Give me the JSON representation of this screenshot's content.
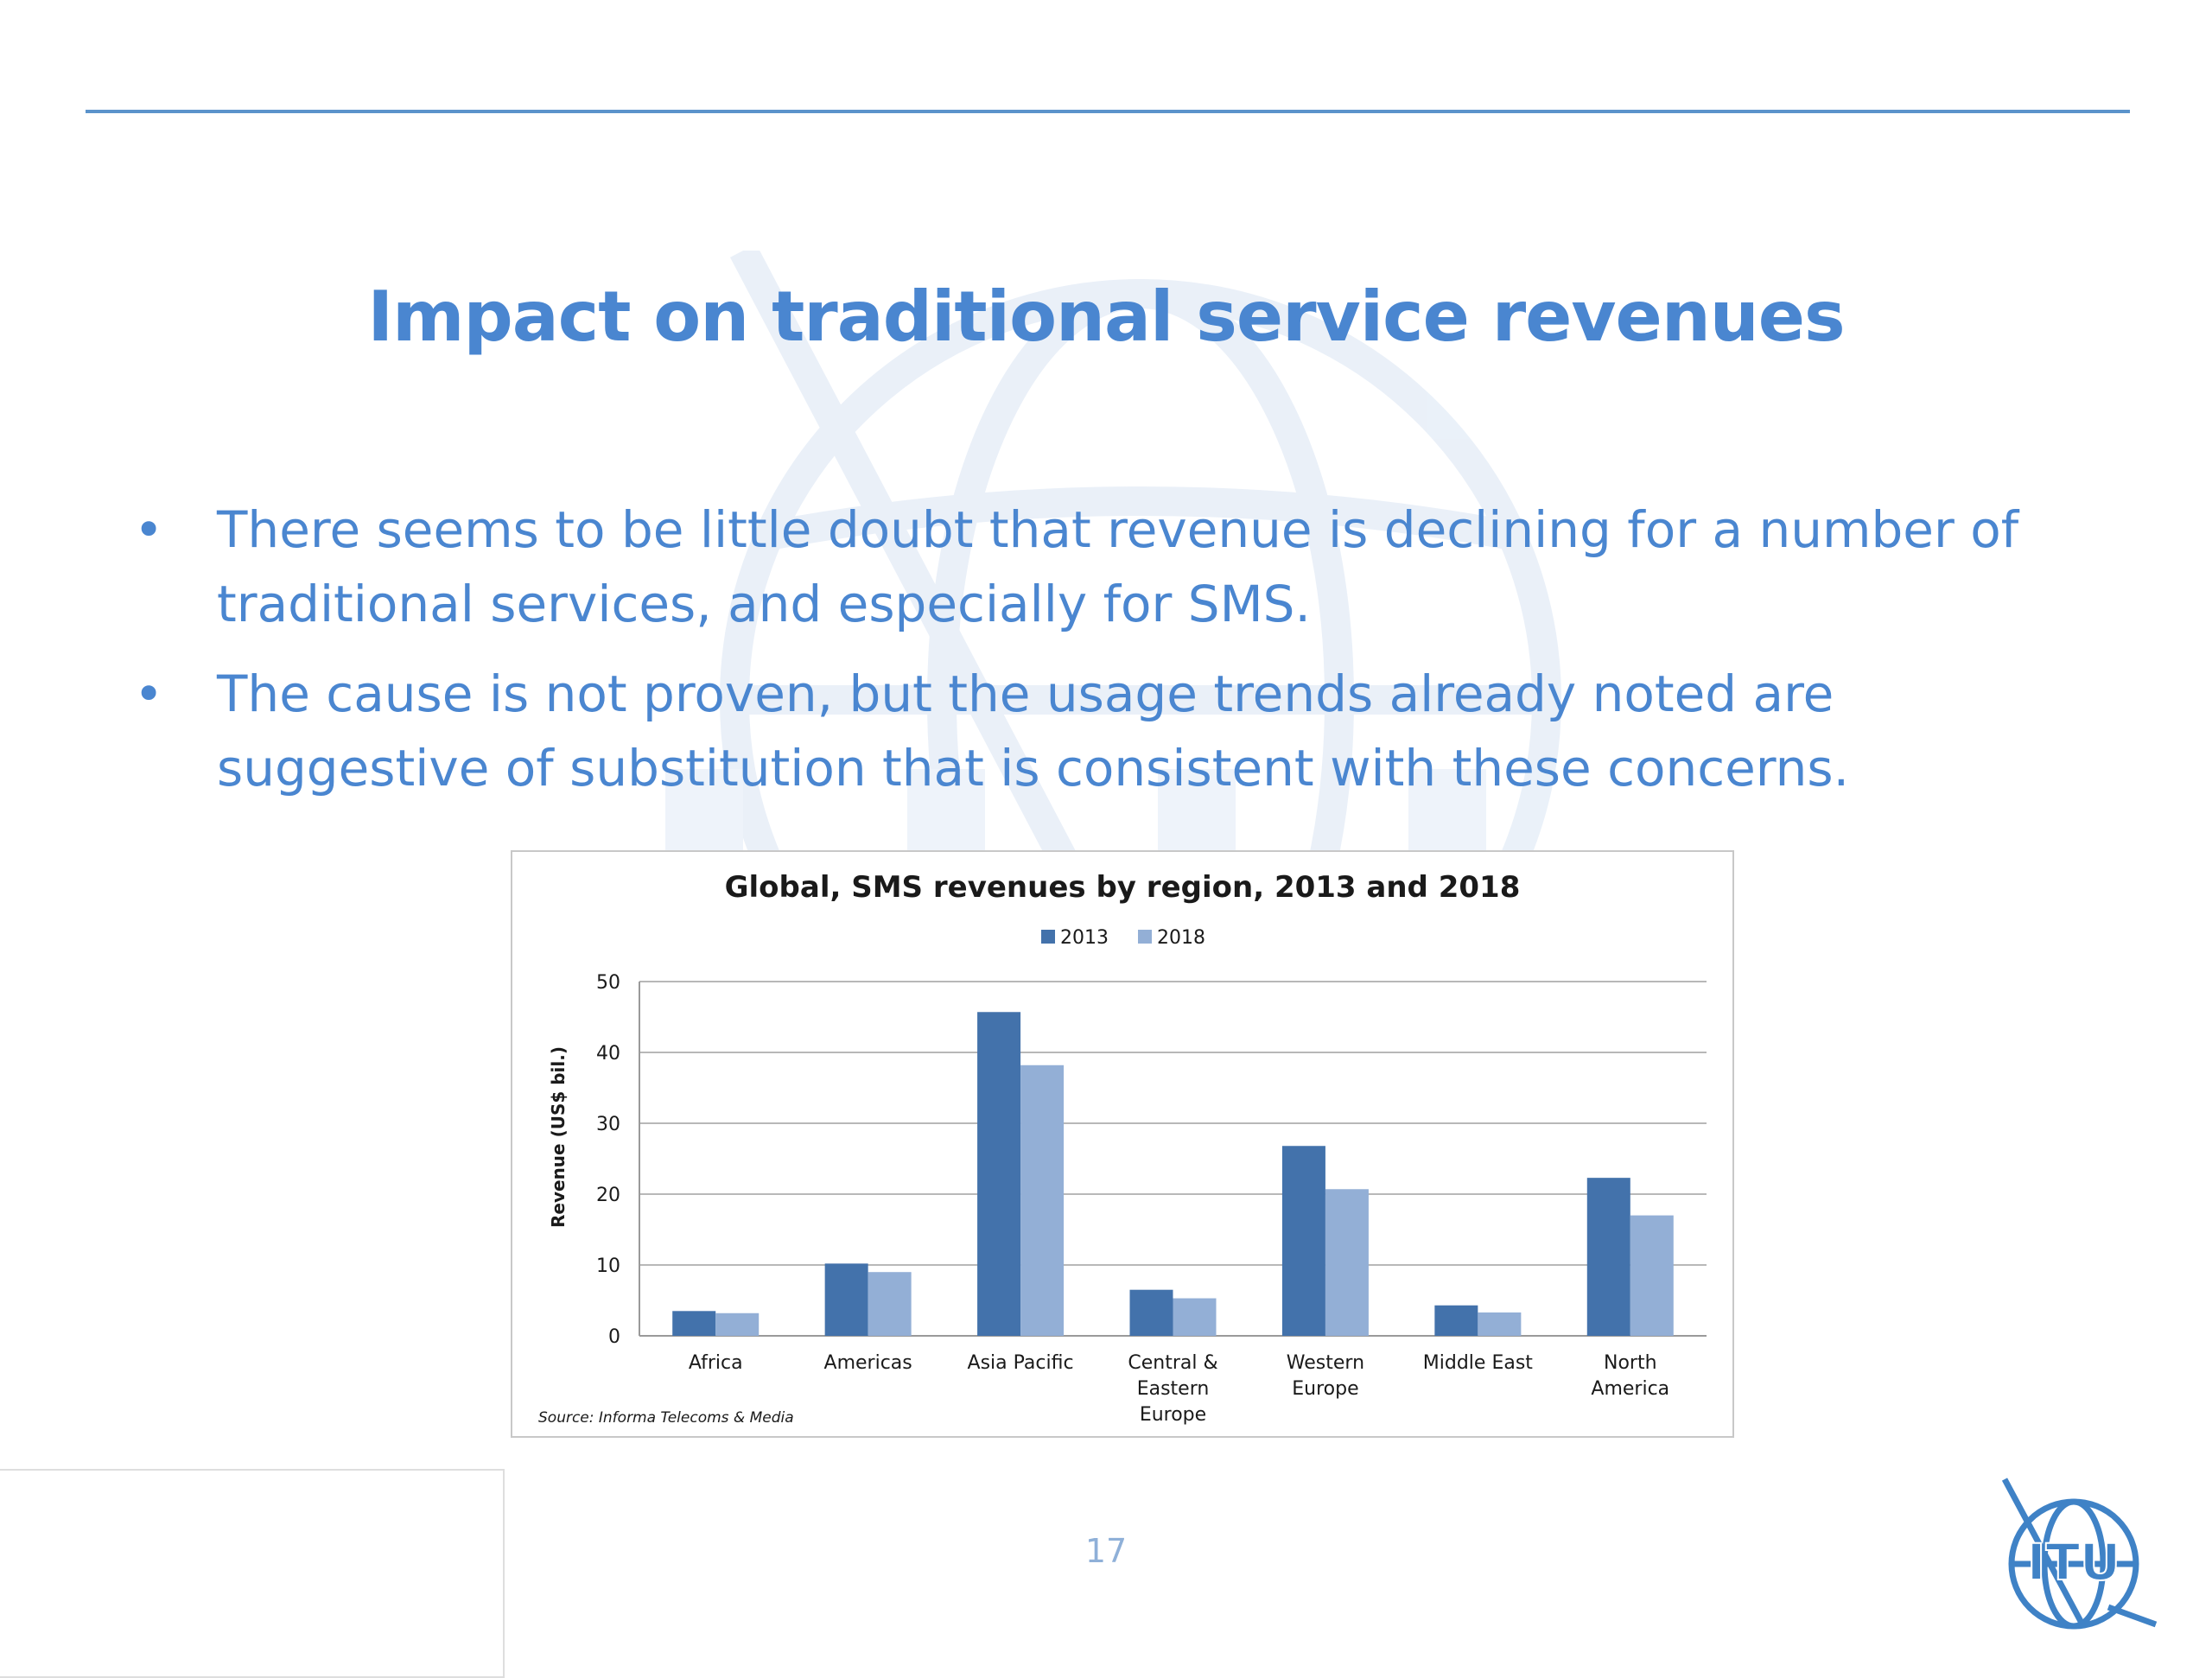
{
  "slide": {
    "title": "Impact on traditional service revenues",
    "bullets": [
      "There seems to be little doubt that revenue is declining for a number of traditional services, and especially for SMS.",
      "The cause is not proven, but the usage trends already noted are suggestive of substitution that is consistent with these concerns."
    ],
    "page_number": "17",
    "logo_text": "ITU",
    "colors": {
      "title": "#4a86d0",
      "rule": "#5b93cb"
    }
  },
  "chart_data": {
    "type": "bar",
    "title": "Global,  SMS revenues by region, 2013 and 2018",
    "ylabel": "Revenue (US$ bil.)",
    "xlabel": "",
    "categories": [
      [
        "Africa"
      ],
      [
        "Americas"
      ],
      [
        "Asia Pacific"
      ],
      [
        "Central &",
        "Eastern",
        "Europe"
      ],
      [
        "Western",
        "Europe"
      ],
      [
        "Middle East"
      ],
      [
        "North",
        "America"
      ]
    ],
    "series": [
      {
        "name": "2013",
        "color": "#4372ab",
        "values": [
          3.5,
          10.2,
          45.7,
          6.5,
          26.8,
          4.3,
          22.3
        ]
      },
      {
        "name": "2018",
        "color": "#93afd6",
        "values": [
          3.2,
          9.0,
          38.2,
          5.3,
          20.7,
          3.3,
          17.0
        ]
      }
    ],
    "ylim": [
      0,
      50
    ],
    "yticks": [
      0,
      10,
      20,
      30,
      40,
      50
    ],
    "grid": true,
    "legend_position": "top-center",
    "source": "Source: Informa Telecoms & Media"
  }
}
